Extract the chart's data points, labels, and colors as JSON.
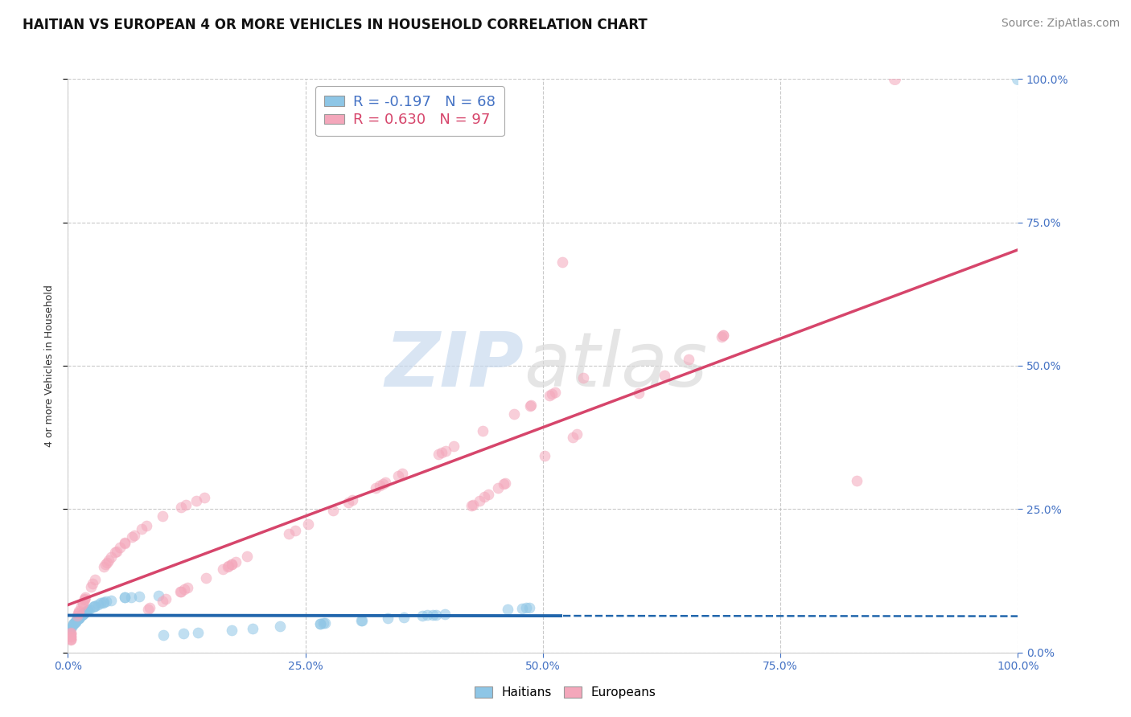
{
  "title": "HAITIAN VS EUROPEAN 4 OR MORE VEHICLES IN HOUSEHOLD CORRELATION CHART",
  "source": "Source: ZipAtlas.com",
  "ylabel": "4 or more Vehicles in Household",
  "legend_label1": "Haitians",
  "legend_label2": "Europeans",
  "R1": -0.197,
  "N1": 68,
  "R2": 0.63,
  "N2": 97,
  "haitian_color": "#8ec6e6",
  "european_color": "#f4a7bb",
  "haitian_line_color": "#2166ac",
  "european_line_color": "#d6456b",
  "background_color": "#ffffff",
  "grid_color": "#bbbbbb",
  "title_fontsize": 12,
  "source_fontsize": 10,
  "legend_fontsize": 13,
  "right_tick_color": "#4472c4",
  "bottom_tick_color": "#4472c4"
}
